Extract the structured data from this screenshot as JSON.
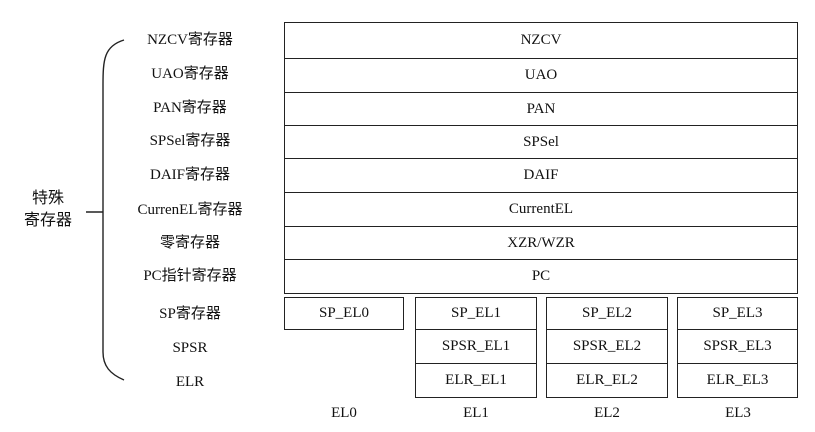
{
  "group_label": [
    "特殊",
    "寄存器"
  ],
  "rows": [
    {
      "label": "NZCV寄存器",
      "value": "NZCV"
    },
    {
      "label": "UAO寄存器",
      "value": "UAO"
    },
    {
      "label": "PAN寄存器",
      "value": "PAN"
    },
    {
      "label": "SPSel寄存器",
      "value": "SPSel"
    },
    {
      "label": "DAIF寄存器",
      "value": "DAIF"
    },
    {
      "label": "CurrenEL寄存器",
      "value": "CurrentEL"
    },
    {
      "label": "零寄存器",
      "value": "XZR/WZR"
    },
    {
      "label": "PC指针寄存器",
      "value": "PC"
    }
  ],
  "banked": {
    "sp": {
      "label": "SP寄存器",
      "cells": [
        "SP_EL0",
        "SP_EL1",
        "SP_EL2",
        "SP_EL3"
      ]
    },
    "spsr": {
      "label": "SPSR",
      "cells": [
        "SPSR_EL1",
        "SPSR_EL2",
        "SPSR_EL3"
      ]
    },
    "elr": {
      "label": "ELR",
      "cells": [
        "ELR_EL1",
        "ELR_EL2",
        "ELR_EL3"
      ]
    }
  },
  "columns": [
    "EL0",
    "EL1",
    "EL2",
    "EL3"
  ]
}
